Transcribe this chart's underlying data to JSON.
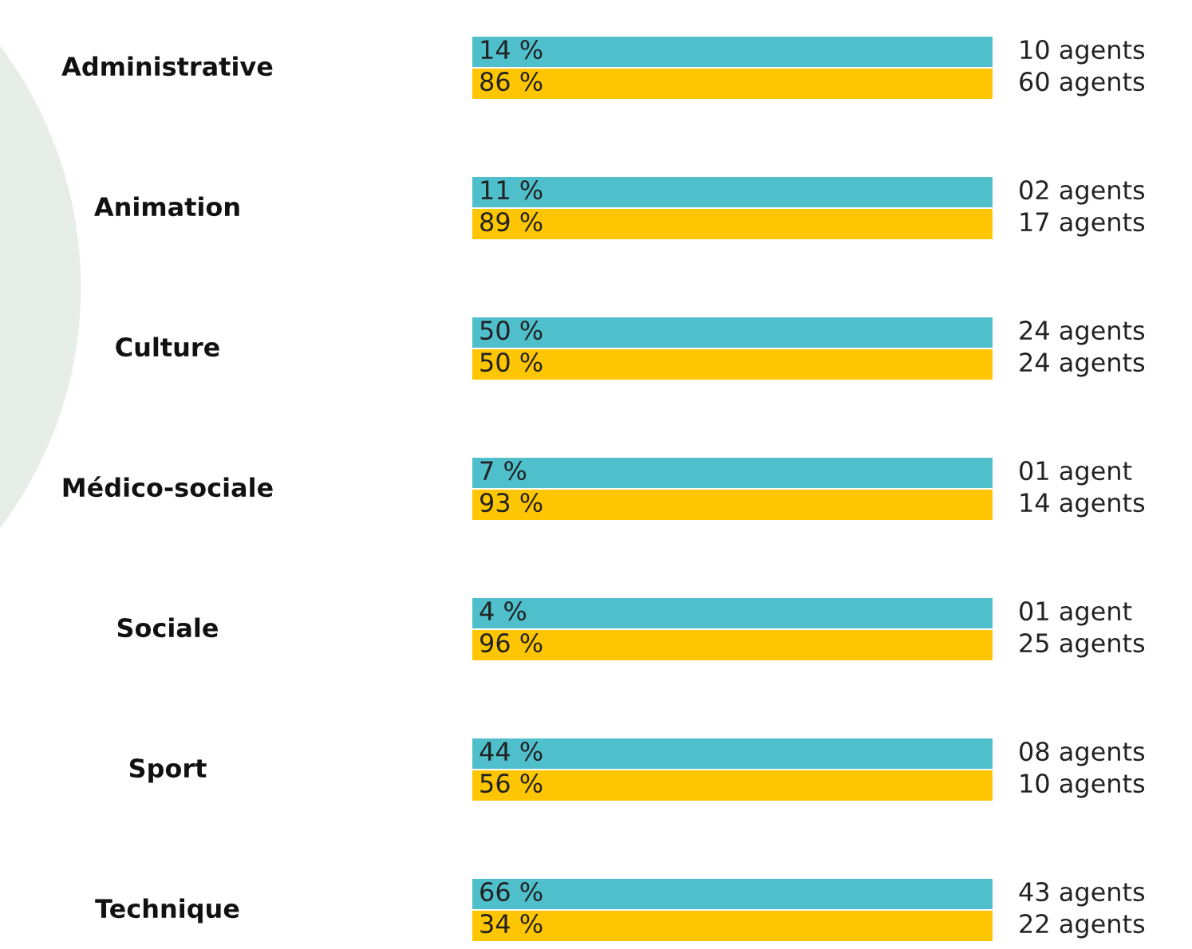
{
  "chart_data": {
    "type": "other",
    "categories": [
      "Administrative",
      "Animation",
      "Culture",
      "Médico-sociale",
      "Sociale",
      "Sport",
      "Technique"
    ],
    "series": [
      {
        "color": "#4fbfcc",
        "values": [
          14,
          11,
          50,
          7,
          4,
          44,
          66
        ],
        "value_labels": [
          "14 %",
          "11 %",
          "50 %",
          "7 %",
          "4 %",
          "44 %",
          "66 %"
        ]
      },
      {
        "color": "#fec502",
        "values": [
          86,
          89,
          50,
          93,
          96,
          56,
          34
        ],
        "value_labels": [
          "86 %",
          "89 %",
          "50 %",
          "93 %",
          "96 %",
          "56 %",
          "34 %"
        ]
      }
    ],
    "annotations": [
      "10 agents",
      "60 agents",
      "02 agents",
      "17 agents",
      "24 agents",
      "24 agents",
      "01 agent",
      "14 agents",
      "01 agent",
      "25 agents",
      "08 agents",
      "10 agents",
      "43 agents",
      "22 agents"
    ]
  }
}
